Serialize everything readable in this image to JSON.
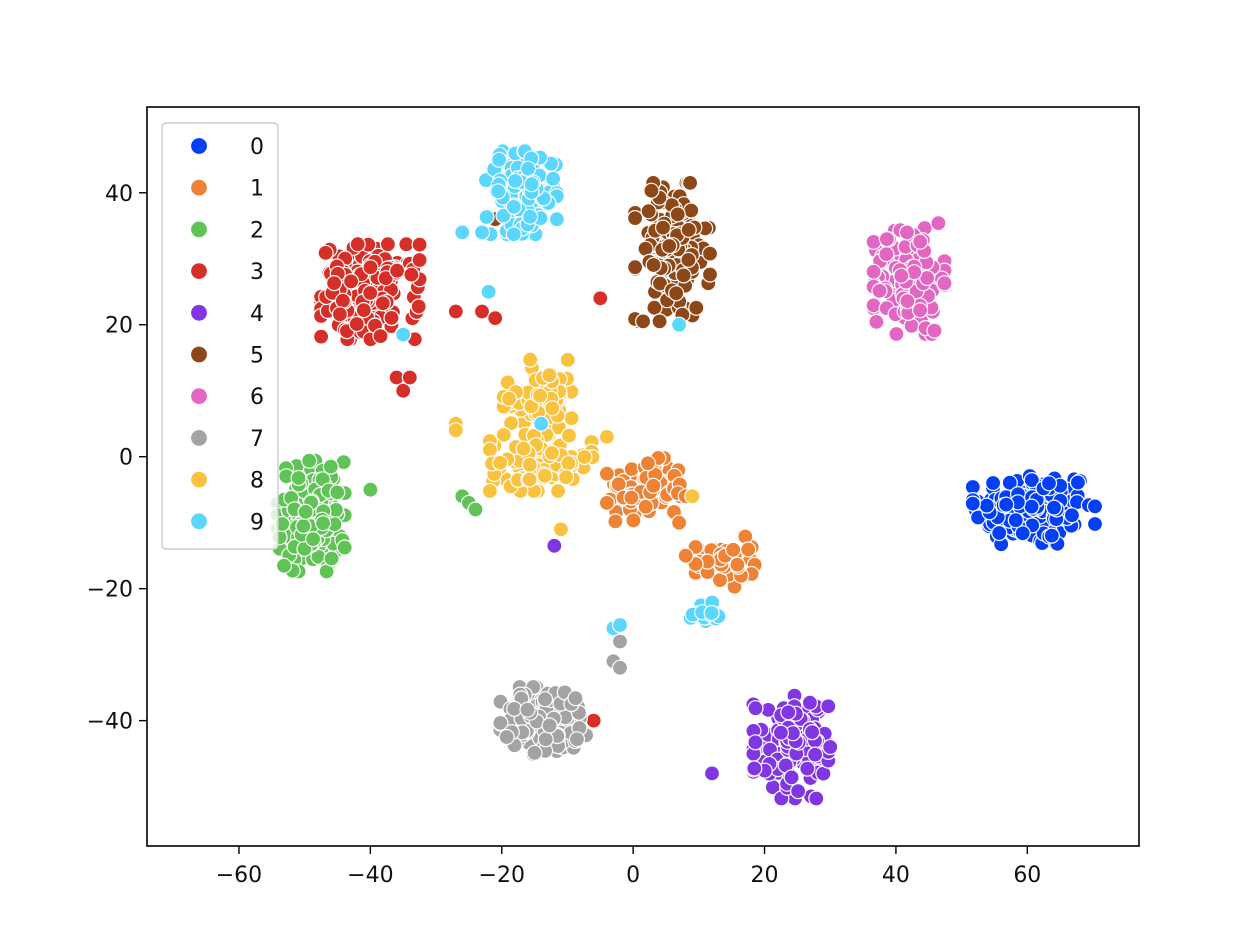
{
  "chart_data": {
    "type": "scatter",
    "title": "",
    "xlabel": "",
    "ylabel": "",
    "xlim": [
      -74,
      77
    ],
    "ylim": [
      -59,
      53
    ],
    "xticks": [
      -60,
      -40,
      -20,
      0,
      20,
      40,
      60
    ],
    "yticks": [
      -40,
      -20,
      0,
      20,
      40
    ],
    "grid": false,
    "legend_placement": "upper-left",
    "marker_edge_color": "#ffffff",
    "series": [
      {
        "name": "0",
        "color": "#0340f5",
        "clusters": [
          {
            "center": [
              61,
              -8
            ],
            "spread": [
              6.2,
              4.0
            ],
            "count": 150
          }
        ]
      },
      {
        "name": "1",
        "color": "#ee8335",
        "clusters": [
          {
            "center": [
              2,
              -5
            ],
            "spread": [
              4.0,
              3.2
            ],
            "count": 90
          },
          {
            "center": [
              14,
              -16
            ],
            "spread": [
              3.0,
              2.6
            ],
            "count": 40
          }
        ],
        "points": [
          [
            8,
            -6
          ],
          [
            7,
            -10
          ],
          [
            8,
            -15
          ],
          [
            -4,
            -7
          ]
        ]
      },
      {
        "name": "2",
        "color": "#5fc356",
        "clusters": [
          {
            "center": [
              -49,
              -9
            ],
            "spread": [
              3.4,
              5.6
            ],
            "count": 140
          }
        ],
        "points": [
          [
            -26,
            -6
          ],
          [
            -25,
            -7
          ],
          [
            -24,
            -8
          ],
          [
            -40,
            -5
          ]
        ]
      },
      {
        "name": "3",
        "color": "#d62f27",
        "clusters": [
          {
            "center": [
              -40,
              25
            ],
            "spread": [
              5.0,
              4.8
            ],
            "count": 150
          }
        ],
        "points": [
          [
            -36,
            12
          ],
          [
            -35,
            10
          ],
          [
            -34,
            12
          ],
          [
            -27,
            22
          ],
          [
            -23,
            22
          ],
          [
            -21,
            21
          ],
          [
            -5,
            24
          ],
          [
            -6,
            -40
          ]
        ]
      },
      {
        "name": "4",
        "color": "#8136e3",
        "clusters": [
          {
            "center": [
              24,
              -44
            ],
            "spread": [
              3.8,
              5.2
            ],
            "count": 120
          }
        ],
        "points": [
          [
            12,
            -48
          ],
          [
            -12,
            -13.5
          ],
          [
            30,
            -44
          ]
        ]
      },
      {
        "name": "5",
        "color": "#8e4717",
        "clusters": [
          {
            "center": [
              6,
              31
            ],
            "spread": [
              3.8,
              7.0
            ],
            "count": 150
          }
        ],
        "points": [
          [
            40,
            29.5
          ],
          [
            -21,
            36
          ]
        ]
      },
      {
        "name": "6",
        "color": "#e366c3",
        "clusters": [
          {
            "center": [
              42,
              27
            ],
            "spread": [
              3.6,
              5.6
            ],
            "count": 150
          }
        ]
      },
      {
        "name": "7",
        "color": "#a3a3a3",
        "clusters": [
          {
            "center": [
              -13,
              -40
            ],
            "spread": [
              4.8,
              3.4
            ],
            "count": 140
          }
        ],
        "points": [
          [
            -3,
            -31
          ],
          [
            -2,
            -32
          ],
          [
            -2,
            -28
          ]
        ]
      },
      {
        "name": "8",
        "color": "#f9c33f",
        "clusters": [
          {
            "center": [
              -14,
              9
            ],
            "spread": [
              3.8,
              3.8
            ],
            "count": 80
          },
          {
            "center": [
              -14,
              -1
            ],
            "spread": [
              5.2,
              2.8
            ],
            "count": 80
          }
        ],
        "points": [
          [
            -27,
            5
          ],
          [
            -27,
            4
          ],
          [
            -11,
            -11
          ],
          [
            9,
            -6
          ],
          [
            -4,
            3
          ]
        ]
      },
      {
        "name": "9",
        "color": "#5ad6ff",
        "clusters": [
          {
            "center": [
              -17,
              40
            ],
            "spread": [
              3.6,
              4.2
            ],
            "count": 130
          },
          {
            "center": [
              11,
              -24
            ],
            "spread": [
              1.8,
              1.4
            ],
            "count": 14
          }
        ],
        "points": [
          [
            -26,
            34
          ],
          [
            -23,
            34
          ],
          [
            -22,
            25
          ],
          [
            -35,
            18.5
          ],
          [
            7,
            20
          ],
          [
            -3,
            -26
          ],
          [
            -2,
            -25.5
          ],
          [
            -14,
            5
          ]
        ]
      }
    ]
  }
}
